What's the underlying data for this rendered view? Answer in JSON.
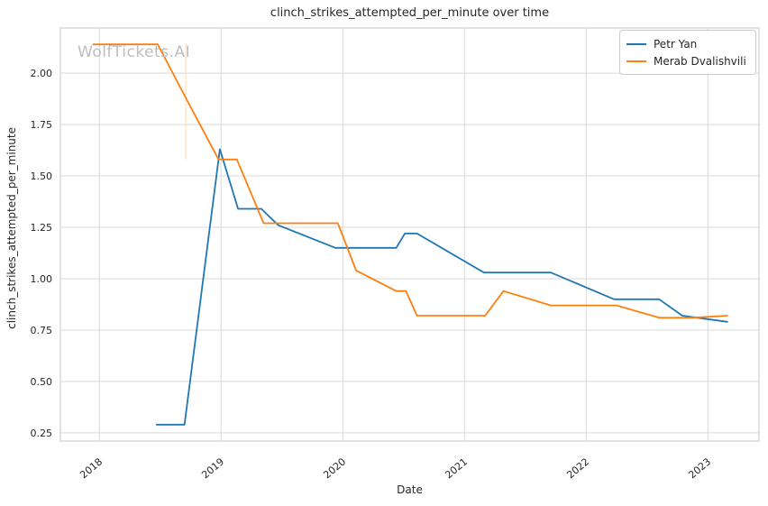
{
  "watermark": {
    "text": "WolfTickets.AI"
  },
  "chart_data": {
    "type": "line",
    "title": "clinch_strikes_attempted_per_minute over time",
    "xlabel": "Date",
    "ylabel": "clinch_strikes_attempted_per_minute",
    "xlim": [
      2017.68,
      2023.42
    ],
    "ylim": [
      0.21,
      2.22
    ],
    "x_ticks": [
      2018,
      2019,
      2020,
      2021,
      2022,
      2023
    ],
    "y_ticks": [
      0.25,
      0.5,
      0.75,
      1.0,
      1.25,
      1.5,
      1.75,
      2.0
    ],
    "grid": true,
    "legend_position": "upper right",
    "series": [
      {
        "name": "Petr Yan",
        "color": "#1f77b4",
        "points": [
          [
            2018.47,
            0.29
          ],
          [
            2018.7,
            0.29
          ],
          [
            2018.99,
            1.63
          ],
          [
            2019.14,
            1.34
          ],
          [
            2019.33,
            1.34
          ],
          [
            2019.47,
            1.26
          ],
          [
            2019.94,
            1.15
          ],
          [
            2020.44,
            1.15
          ],
          [
            2020.51,
            1.22
          ],
          [
            2020.61,
            1.22
          ],
          [
            2021.16,
            1.03
          ],
          [
            2021.71,
            1.03
          ],
          [
            2022.23,
            0.9
          ],
          [
            2022.6,
            0.9
          ],
          [
            2022.79,
            0.82
          ],
          [
            2023.16,
            0.79
          ]
        ]
      },
      {
        "name": "Merab Dvalishvili",
        "color": "#ff7f0e",
        "points": [
          [
            2017.95,
            2.14
          ],
          [
            2018.48,
            2.14
          ],
          [
            2018.71,
            1.88
          ],
          [
            2018.98,
            1.58
          ],
          [
            2019.13,
            1.58
          ],
          [
            2019.35,
            1.27
          ],
          [
            2019.96,
            1.27
          ],
          [
            2020.11,
            1.04
          ],
          [
            2020.44,
            0.94
          ],
          [
            2020.52,
            0.94
          ],
          [
            2020.61,
            0.82
          ],
          [
            2021.17,
            0.82
          ],
          [
            2021.32,
            0.94
          ],
          [
            2021.71,
            0.87
          ],
          [
            2022.25,
            0.87
          ],
          [
            2022.6,
            0.81
          ],
          [
            2022.87,
            0.81
          ],
          [
            2023.16,
            0.82
          ]
        ]
      }
    ],
    "annotations": {
      "vline": {
        "x": 2018.71,
        "y1": 1.58,
        "y2": 2.14,
        "color": "#ffd9ae"
      }
    }
  }
}
